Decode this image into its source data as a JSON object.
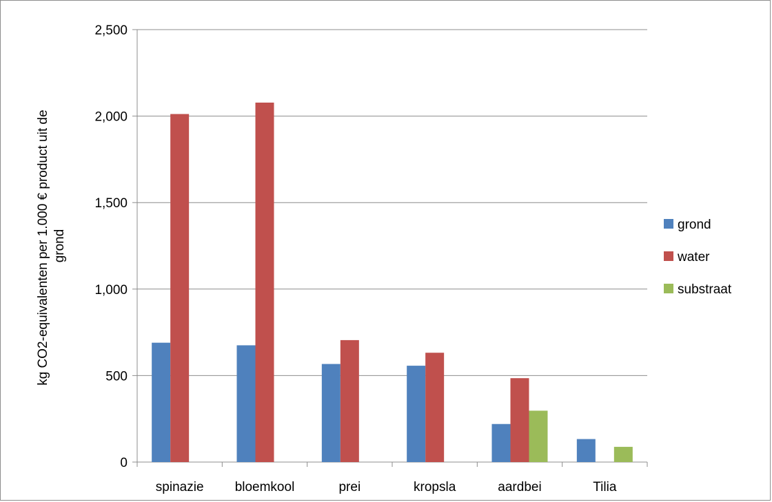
{
  "chart_data": {
    "type": "bar",
    "title": "",
    "xlabel": "",
    "ylabel": "kg CO2-equivalenten per 1.000 € product uit de grond",
    "ylabel_lines": [
      "kg CO2-equivalenten per 1.000 € product uit de",
      "grond"
    ],
    "ylim": [
      0,
      2500
    ],
    "yticks": [
      0,
      500,
      1000,
      1500,
      2000,
      2500
    ],
    "ytick_labels": [
      "0",
      "500",
      "1,000",
      "1,500",
      "2,000",
      "2,500"
    ],
    "grid": true,
    "legend_position": "right",
    "categories": [
      "spinazie",
      "bloemkool",
      "prei",
      "kropsla",
      "aardbei",
      "Tilia"
    ],
    "series": [
      {
        "name": "grond",
        "color": "#4f81bd",
        "values": [
          690,
          675,
          567,
          557,
          220,
          133
        ]
      },
      {
        "name": "water",
        "color": "#c0504d",
        "values": [
          2012,
          2078,
          705,
          632,
          485,
          null
        ]
      },
      {
        "name": "substraat",
        "color": "#9bbb59",
        "values": [
          null,
          null,
          null,
          null,
          297,
          88
        ]
      }
    ]
  }
}
